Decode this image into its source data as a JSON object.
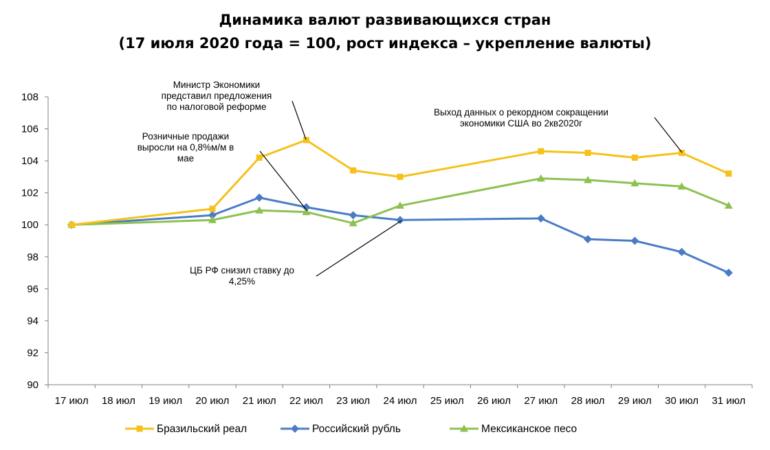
{
  "title_line1": "Динамика валют развивающихся стран",
  "title_line2": "(17 июля 2020 года = 100, рост индекса – укрепление валюты)",
  "colors": {
    "brl": "#F5C11A",
    "rub": "#4A7CC6",
    "mxn": "#8CC152",
    "axis": "#808080"
  },
  "chart_data": {
    "type": "line",
    "x": [
      "17 июл",
      "18 июл",
      "19 июл",
      "20 июл",
      "21 июл",
      "22 июл",
      "23 июл",
      "24 июл",
      "25 июл",
      "26 июл",
      "27 июл",
      "28 июл",
      "29 июл",
      "30 июл",
      "31 июл"
    ],
    "ylim": [
      90,
      108
    ],
    "yticks": [
      90,
      92,
      94,
      96,
      98,
      100,
      102,
      104,
      106,
      108
    ],
    "grid": false,
    "legend_position": "bottom",
    "series": [
      {
        "name": "Бразильский реал",
        "color": "#F5C11A",
        "marker": "square",
        "points": [
          [
            "17 июл",
            100.0
          ],
          [
            "20 июл",
            101.0
          ],
          [
            "21 июл",
            104.2
          ],
          [
            "22 июл",
            105.3
          ],
          [
            "23 июл",
            103.4
          ],
          [
            "24 июл",
            103.0
          ],
          [
            "27 июл",
            104.6
          ],
          [
            "28 июл",
            104.5
          ],
          [
            "29 июл",
            104.2
          ],
          [
            "30 июл",
            104.5
          ],
          [
            "31 июл",
            103.2
          ]
        ]
      },
      {
        "name": "Российский рубль",
        "color": "#4A7CC6",
        "marker": "diamond",
        "points": [
          [
            "17 июл",
            100.0
          ],
          [
            "20 июл",
            100.6
          ],
          [
            "21 июл",
            101.7
          ],
          [
            "22 июл",
            101.1
          ],
          [
            "23 июл",
            100.6
          ],
          [
            "24 июл",
            100.3
          ],
          [
            "27 июл",
            100.4
          ],
          [
            "28 июл",
            99.1
          ],
          [
            "29 июл",
            99.0
          ],
          [
            "30 июл",
            98.3
          ],
          [
            "31 июл",
            97.0
          ]
        ]
      },
      {
        "name": "Мексиканское песо",
        "color": "#8CC152",
        "marker": "triangle",
        "points": [
          [
            "17 июл",
            100.0
          ],
          [
            "20 июл",
            100.3
          ],
          [
            "21 июл",
            100.9
          ],
          [
            "22 июл",
            100.8
          ],
          [
            "23 июл",
            100.1
          ],
          [
            "24 июл",
            101.2
          ],
          [
            "27 июл",
            102.9
          ],
          [
            "28 июл",
            102.8
          ],
          [
            "29 июл",
            102.6
          ],
          [
            "30 июл",
            102.4
          ],
          [
            "31 июл",
            101.2
          ]
        ]
      }
    ],
    "annotations": [
      {
        "lines": [
          "Министр Экономики",
          "представил предложения",
          "по налоговой реформе"
        ],
        "target": [
          "22 июл",
          105.3
        ]
      },
      {
        "lines": [
          "Розничные продажи",
          "выросли на 0,8%м/м в",
          "мае"
        ],
        "target": [
          "22 июл",
          100.8
        ]
      },
      {
        "lines": [
          "ЦБ РФ снизил ставку до",
          "4,25%"
        ],
        "target": [
          "24 июл",
          100.3
        ]
      },
      {
        "lines": [
          "Выход данных о рекордном сокращении",
          "экономики США во 2кв2020г"
        ],
        "target": [
          "30 июл",
          104.5
        ]
      }
    ]
  }
}
